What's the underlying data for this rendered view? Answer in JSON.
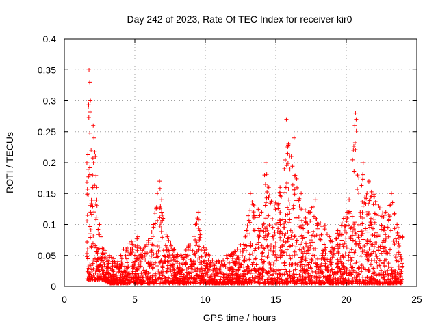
{
  "chart_data": {
    "type": "scatter",
    "title": "Day 242 of 2023, Rate Of TEC Index for receiver kir0",
    "xlabel": "GPS time / hours",
    "ylabel": "ROTI / TECUs",
    "xlim": [
      0,
      25
    ],
    "ylim": [
      0,
      0.4
    ],
    "x_ticks": [
      "0",
      "5",
      "10",
      "15",
      "20",
      "25"
    ],
    "y_ticks": [
      "0",
      "0.05",
      "0.1",
      "0.15",
      "0.2",
      "0.25",
      "0.3",
      "0.35",
      "0.4"
    ],
    "grid": true,
    "marker": "+",
    "color": "#ff0000",
    "series": [
      {
        "x": [
          1.6,
          1.7,
          1.75,
          1.8,
          1.85,
          1.9,
          2.0,
          2.05,
          2.1,
          2.2,
          2.3,
          2.5,
          2.6,
          2.8,
          3.2,
          3.5,
          3.8,
          4.2,
          4.6,
          5.2,
          5.6,
          6.3,
          6.6,
          6.75,
          6.9,
          7.0,
          7.3,
          7.8,
          8.3,
          8.8,
          9.3,
          9.5,
          9.6,
          10.3,
          10.8,
          11.5,
          12.3,
          12.9,
          13.2,
          13.5,
          14.0,
          14.2,
          14.3,
          14.5,
          14.9,
          15.3,
          15.6,
          15.75,
          15.9,
          16.1,
          16.3,
          16.8,
          17.3,
          17.8,
          18.8,
          19.4,
          19.8,
          20.2,
          20.5,
          20.6,
          20.65,
          20.7,
          20.8,
          21.2,
          21.6,
          22.3,
          22.8,
          23.2,
          23.6,
          24.0
        ],
        "y": [
          0.2,
          0.29,
          0.35,
          0.33,
          0.3,
          0.22,
          0.18,
          0.26,
          0.24,
          0.21,
          0.16,
          0.1,
          0.08,
          0.06,
          0.05,
          0.045,
          0.04,
          0.06,
          0.07,
          0.08,
          0.06,
          0.1,
          0.15,
          0.17,
          0.14,
          0.11,
          0.08,
          0.06,
          0.05,
          0.065,
          0.1,
          0.12,
          0.09,
          0.05,
          0.04,
          0.05,
          0.06,
          0.09,
          0.15,
          0.13,
          0.12,
          0.18,
          0.2,
          0.16,
          0.13,
          0.16,
          0.19,
          0.27,
          0.23,
          0.21,
          0.24,
          0.15,
          0.12,
          0.14,
          0.08,
          0.09,
          0.11,
          0.14,
          0.22,
          0.26,
          0.28,
          0.27,
          0.18,
          0.2,
          0.17,
          0.13,
          0.12,
          0.15,
          0.1,
          0.08
        ],
        "floor": [
          0.01,
          0.01,
          0.01,
          0.01,
          0.01,
          0.01,
          0.01,
          0.01,
          0.01,
          0.01,
          0.01,
          0.01,
          0.01,
          0.01,
          0.005,
          0.005,
          0.005,
          0.005,
          0.005,
          0.005,
          0.005,
          0.005,
          0.005,
          0.005,
          0.005,
          0.005,
          0.005,
          0.005,
          0.005,
          0.005,
          0.005,
          0.005,
          0.005,
          0.005,
          0.005,
          0.005,
          0.005,
          0.005,
          0.005,
          0.005,
          0.005,
          0.005,
          0.005,
          0.005,
          0.005,
          0.005,
          0.005,
          0.005,
          0.005,
          0.005,
          0.005,
          0.005,
          0.005,
          0.005,
          0.005,
          0.005,
          0.005,
          0.005,
          0.005,
          0.005,
          0.005,
          0.005,
          0.005,
          0.005,
          0.005,
          0.005,
          0.005,
          0.005,
          0.005,
          0.005
        ]
      }
    ]
  }
}
